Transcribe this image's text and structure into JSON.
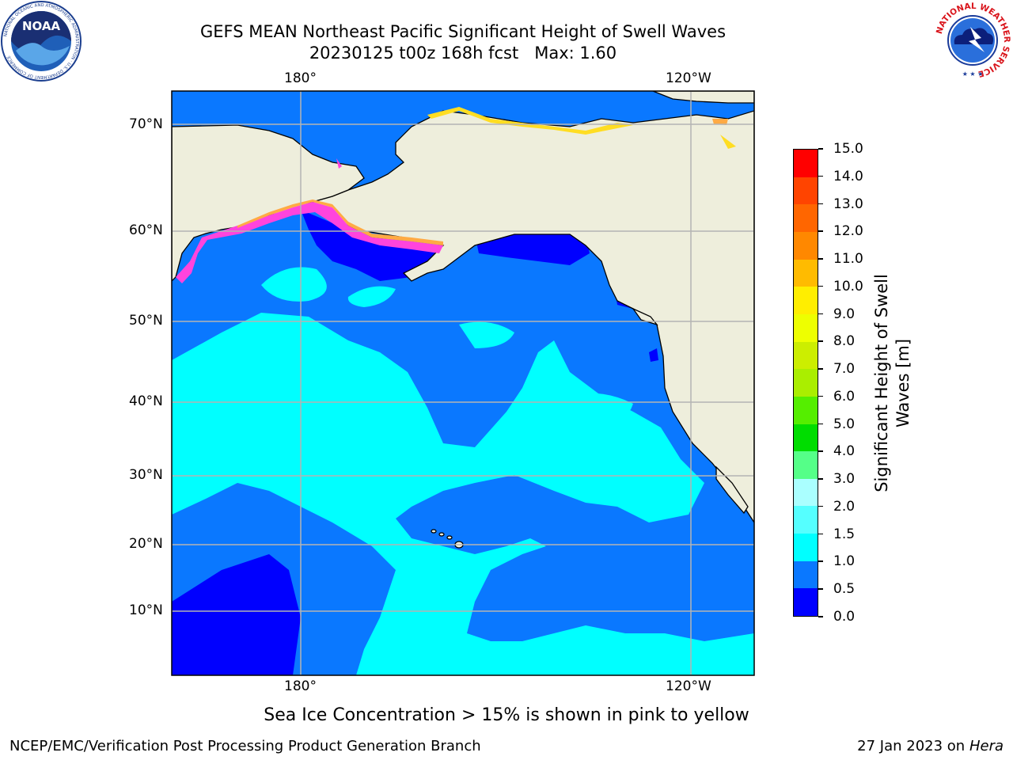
{
  "header": {
    "title_line1": "GEFS MEAN Northeast Pacific Significant Height of Swell Waves",
    "title_line2": "20230125 t00z 168h fcst   Max: 1.60"
  },
  "logos": {
    "left": "noaa-logo",
    "left_text": "NOAA",
    "left_ring_text": "NATIONAL OCEANIC AND ATMOSPHERIC ADMINISTRATION · U.S. DEPARTMENT OF COMMERCE",
    "right": "national-weather-service-logo",
    "right_ring_text": "NATIONAL WEATHER SERVICE"
  },
  "map": {
    "lon_ticks_top": [
      "180°",
      "120°W"
    ],
    "lon_ticks_bottom": [
      "180°",
      "120°W"
    ],
    "lat_ticks": [
      "70°N",
      "60°N",
      "50°N",
      "40°N",
      "30°N",
      "20°N",
      "10°N"
    ],
    "colors": {
      "land": "#eeeedc",
      "ice_free_blank": "#ffffff",
      "gridline": "#b4b4b4",
      "coast": "#000000",
      "sea_ice_pink": "#ff44dd",
      "sea_ice_orange": "#ffaa44",
      "sea_ice_yellow": "#ffdd22"
    }
  },
  "legend": {
    "label": "Significant Height of Swell\nWaves [m]",
    "label_line1": "Significant Height of Swell",
    "label_line2": "Waves [m]",
    "ticks": [
      "0.0",
      "0.5",
      "1.0",
      "1.5",
      "2.0",
      "3.0",
      "4.0",
      "5.0",
      "6.0",
      "7.0",
      "8.0",
      "9.0",
      "10.0",
      "11.0",
      "12.0",
      "13.0",
      "14.0",
      "15.0"
    ],
    "colors": [
      "#0000ff",
      "#0a78ff",
      "#00ffff",
      "#55ffff",
      "#aaffff",
      "#55ff88",
      "#00dd00",
      "#55ee00",
      "#aaee00",
      "#ccee00",
      "#eeff00",
      "#ffee00",
      "#ffbb00",
      "#ff8800",
      "#ff6600",
      "#ff4400",
      "#ff0000"
    ]
  },
  "footnote": "Sea Ice Concentration > 15% is shown in pink to yellow",
  "footer": {
    "left": "NCEP/EMC/Verification Post Processing Product Generation Branch",
    "right_prefix": "27 Jan 2023 on ",
    "right_host": "Hera"
  }
}
